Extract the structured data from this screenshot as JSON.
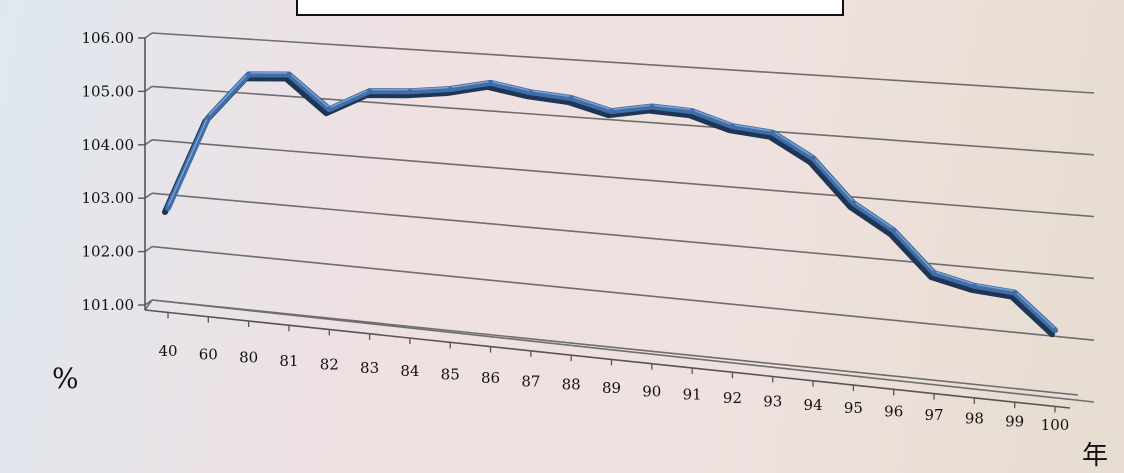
{
  "chart_data": {
    "type": "line",
    "title": "",
    "ylabel": "%",
    "xlabel": "年",
    "ylim": [
      101,
      106
    ],
    "yticks": [
      "106.00",
      "105.00",
      "104.00",
      "103.00",
      "102.00",
      "101.00"
    ],
    "categories": [
      "40",
      "60",
      "80",
      "81",
      "82",
      "83",
      "84",
      "85",
      "86",
      "87",
      "88",
      "89",
      "90",
      "91",
      "92",
      "93",
      "94",
      "95",
      "96",
      "97",
      "98",
      "99",
      "100"
    ],
    "series": [
      {
        "values": [
          102.75,
          104.5,
          105.35,
          105.4,
          104.82,
          105.2,
          105.25,
          105.34,
          105.5,
          105.38,
          105.33,
          105.15,
          105.28,
          105.25,
          105.04,
          104.98,
          104.6,
          103.9,
          103.5,
          102.85,
          102.7,
          102.65,
          102.1
        ]
      }
    ],
    "line_color": "#3f6ea8",
    "grid": true,
    "style": "3d-perspective"
  }
}
